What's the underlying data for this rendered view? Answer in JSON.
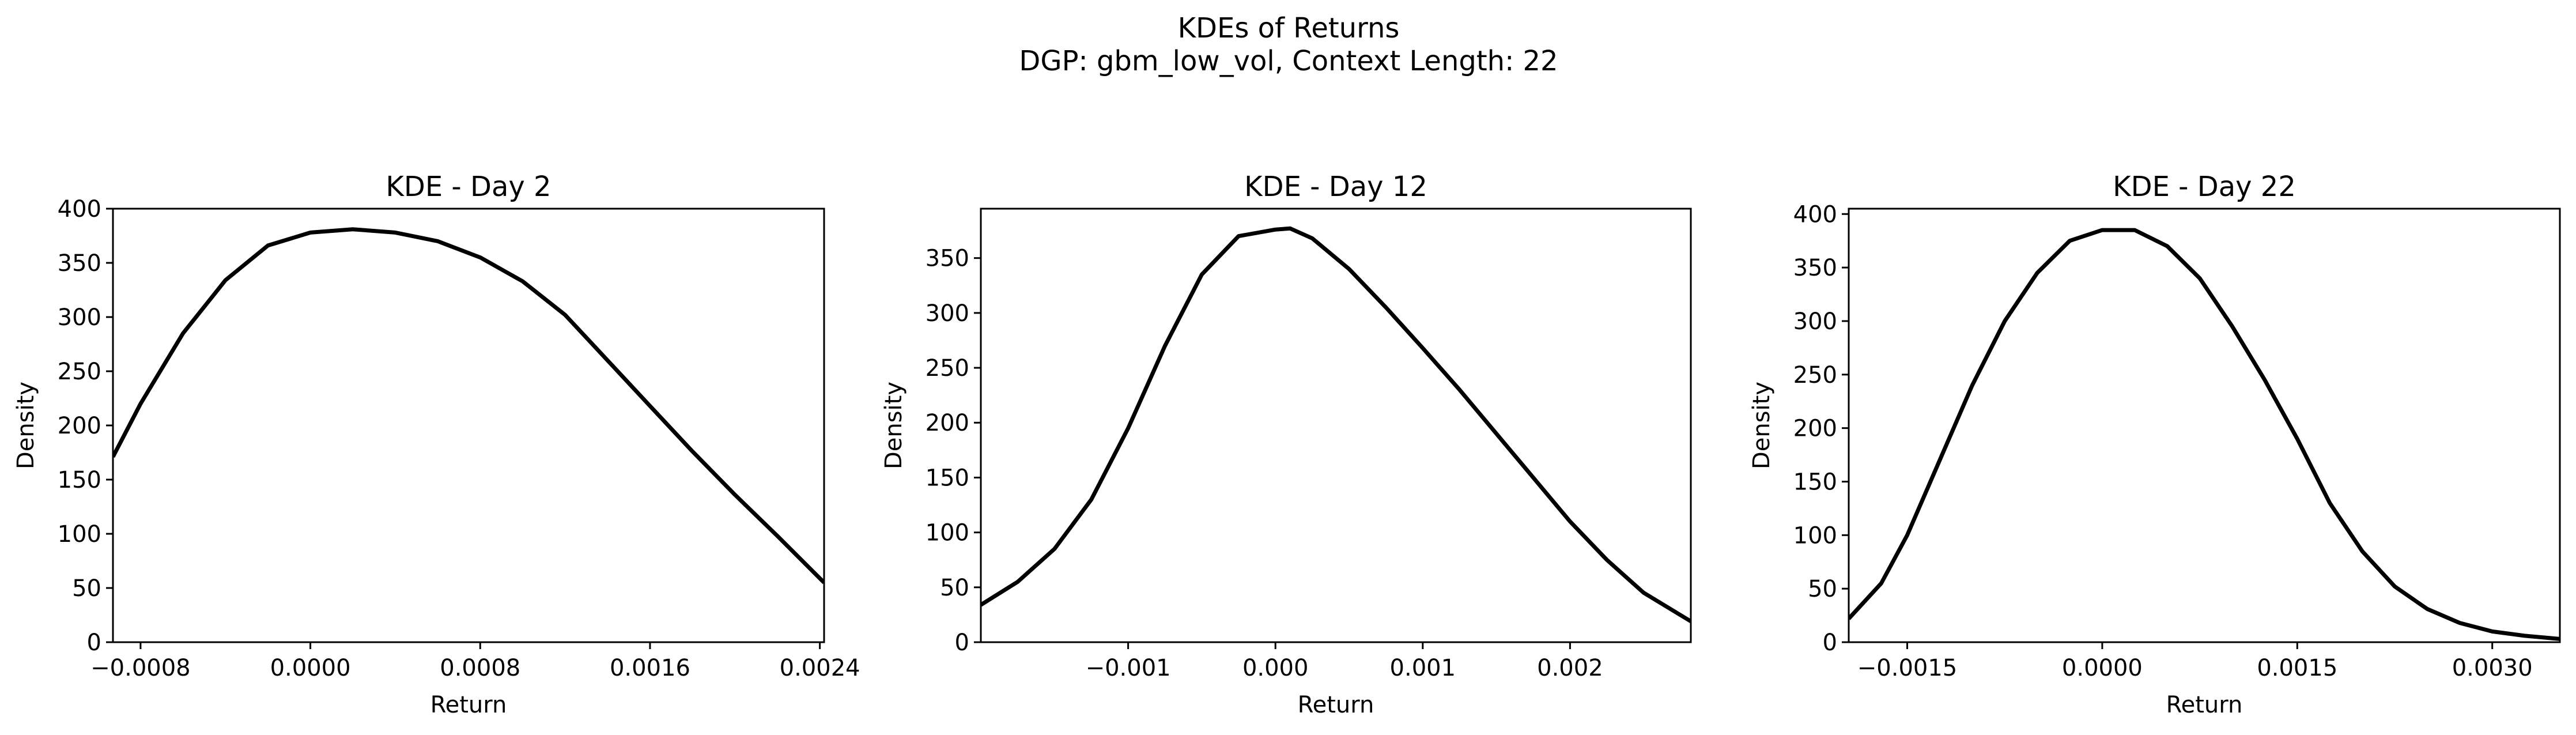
{
  "figure": {
    "title_line1": "KDEs of Returns",
    "title_line2": "DGP: gbm_low_vol, Context Length: 22"
  },
  "chart_data": [
    {
      "type": "line",
      "title": "KDE - Day 2",
      "xlabel": "Return",
      "ylabel": "Density",
      "xlim": [
        -0.00093,
        0.00242
      ],
      "ylim": [
        0,
        400
      ],
      "xticks": [
        -0.0008,
        0.0,
        0.0008,
        0.0016,
        0.0024
      ],
      "xtick_labels": [
        "−0.0008",
        "0.0000",
        "0.0008",
        "0.0016",
        "0.0024"
      ],
      "yticks": [
        0,
        50,
        100,
        150,
        200,
        250,
        300,
        350,
        400
      ],
      "ytick_labels": [
        "0",
        "50",
        "100",
        "150",
        "200",
        "250",
        "300",
        "350",
        "400"
      ],
      "line_color": "#000000",
      "grid": false,
      "series": [
        {
          "x": [
            -0.00093,
            -0.0008,
            -0.0006,
            -0.0004,
            -0.0002,
            0.0,
            0.0002,
            0.0004,
            0.0006,
            0.0008,
            0.001,
            0.0012,
            0.0014,
            0.0016,
            0.0018,
            0.002,
            0.0022,
            0.00242
          ],
          "y": [
            171,
            220,
            285,
            334,
            366,
            378,
            381,
            378,
            370,
            355,
            333,
            302,
            260,
            218,
            176,
            136,
            98,
            55
          ]
        }
      ]
    },
    {
      "type": "line",
      "title": "KDE - Day 12",
      "xlabel": "Return",
      "ylabel": "Density",
      "xlim": [
        -0.002,
        0.00282
      ],
      "ylim": [
        0,
        395
      ],
      "xticks": [
        -0.001,
        0.0,
        0.001,
        0.002
      ],
      "xtick_labels": [
        "−0.001",
        "0.000",
        "0.001",
        "0.002"
      ],
      "yticks": [
        0,
        50,
        100,
        150,
        200,
        250,
        300,
        350
      ],
      "ytick_labels": [
        "0",
        "50",
        "100",
        "150",
        "200",
        "250",
        "300",
        "350"
      ],
      "line_color": "#000000",
      "grid": false,
      "series": [
        {
          "x": [
            -0.002,
            -0.00175,
            -0.0015,
            -0.00125,
            -0.001,
            -0.00075,
            -0.0005,
            -0.00025,
            0.0,
            0.0001,
            0.00025,
            0.0005,
            0.00075,
            0.001,
            0.00125,
            0.0015,
            0.00175,
            0.002,
            0.00225,
            0.0025,
            0.00282
          ],
          "y": [
            34,
            55,
            85,
            130,
            195,
            270,
            335,
            370,
            376,
            377,
            368,
            340,
            305,
            268,
            230,
            190,
            150,
            110,
            75,
            45,
            19
          ]
        }
      ]
    },
    {
      "type": "line",
      "title": "KDE - Day 22",
      "xlabel": "Return",
      "ylabel": "Density",
      "xlim": [
        -0.00195,
        0.00352
      ],
      "ylim": [
        0,
        405
      ],
      "xticks": [
        -0.0015,
        0.0,
        0.0015,
        0.003
      ],
      "xtick_labels": [
        "−0.0015",
        "0.0000",
        "0.0015",
        "0.0030"
      ],
      "yticks": [
        0,
        50,
        100,
        150,
        200,
        250,
        300,
        350,
        400
      ],
      "ytick_labels": [
        "0",
        "50",
        "100",
        "150",
        "200",
        "250",
        "300",
        "350",
        "400"
      ],
      "line_color": "#000000",
      "grid": false,
      "series": [
        {
          "x": [
            -0.00195,
            -0.0017,
            -0.0015,
            -0.00125,
            -0.001,
            -0.00075,
            -0.0005,
            -0.00025,
            0.0,
            0.00025,
            0.0005,
            0.00075,
            0.001,
            0.00125,
            0.0015,
            0.00175,
            0.002,
            0.00225,
            0.0025,
            0.00275,
            0.003,
            0.00325,
            0.00352
          ],
          "y": [
            22,
            55,
            100,
            170,
            240,
            300,
            345,
            375,
            385,
            385,
            370,
            340,
            295,
            245,
            190,
            130,
            85,
            52,
            31,
            18,
            10,
            6,
            3
          ]
        }
      ]
    }
  ]
}
